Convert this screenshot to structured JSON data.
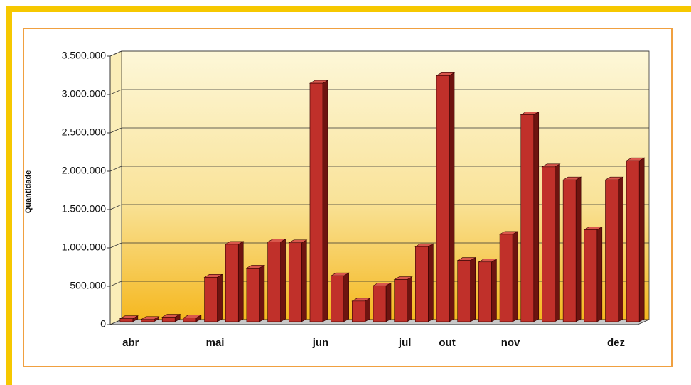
{
  "chart_data": {
    "type": "bar",
    "y_label": "Quantidade",
    "categories": [
      "abr",
      null,
      null,
      null,
      "mai",
      null,
      null,
      null,
      null,
      "jun",
      null,
      null,
      null,
      "jul",
      null,
      "out",
      null,
      null,
      "nov",
      null,
      null,
      null,
      null,
      "dez",
      null
    ],
    "values": [
      40000,
      30000,
      60000,
      50000,
      580000,
      1010000,
      700000,
      1040000,
      1030000,
      3110000,
      600000,
      270000,
      470000,
      550000,
      980000,
      3210000,
      800000,
      780000,
      1140000,
      2700000,
      2020000,
      1850000,
      1200000,
      1850000,
      2100000
    ],
    "color": "#c0302a",
    "ylim": [
      0,
      3500000
    ],
    "yticks": [
      0,
      {
        "value": 500000,
        "label": "500.000"
      },
      {
        "value": 1000000,
        "label": "1.000.000"
      },
      {
        "value": 1500000,
        "label": "1.500.000"
      },
      {
        "value": 2000000,
        "label": "2.000.000"
      },
      {
        "value": 2500000,
        "label": "2.500.000"
      },
      {
        "value": 3000000,
        "label": "3.000.000"
      },
      {
        "value": 3500000,
        "label": "3.500.000"
      }
    ],
    "grid": true
  }
}
